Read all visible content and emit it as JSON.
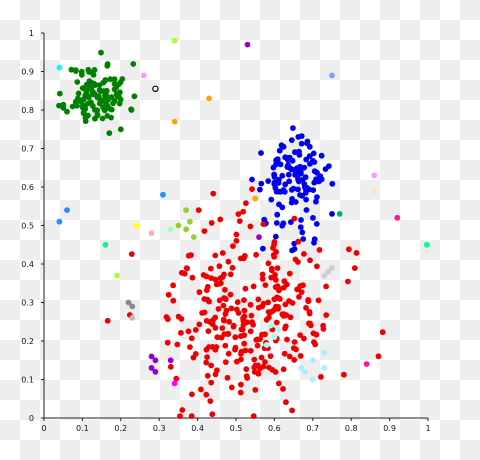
{
  "chart_data": {
    "type": "scatter",
    "xlim": [
      0,
      1
    ],
    "ylim": [
      0,
      1
    ],
    "x_ticks": [
      "0",
      "0.1",
      "0.2",
      "0.3",
      "0.4",
      "0.5",
      "0.6",
      "0.7",
      "0.8",
      "0.9",
      "1"
    ],
    "y_ticks": [
      "0",
      "0.1",
      "0.2",
      "0.3",
      "0.4",
      "0.5",
      "0.6",
      "0.7",
      "0.8",
      "0.9",
      "1"
    ],
    "grid": false,
    "clusters": [
      {
        "color": "#008000",
        "center": [
          0.14,
          0.84
        ],
        "spread": [
          0.04,
          0.04
        ],
        "count": 120,
        "seed": 11
      },
      {
        "color": "#0000ee",
        "center": [
          0.65,
          0.63
        ],
        "spread": [
          0.04,
          0.04
        ],
        "count": 110,
        "seed": 23
      },
      {
        "color": "#0000ee",
        "center": [
          0.63,
          0.49
        ],
        "spread": [
          0.05,
          0.03
        ],
        "count": 20,
        "seed": 31
      },
      {
        "color": "#ee0000",
        "center": [
          0.53,
          0.26
        ],
        "spread": [
          0.11,
          0.11
        ],
        "count": 300,
        "seed": 47
      }
    ],
    "points": [
      [
        0.34,
        0.98,
        "#adff2f"
      ],
      [
        0.53,
        0.97,
        "#9400d3"
      ],
      [
        0.04,
        0.91,
        "#00ffff"
      ],
      [
        0.26,
        0.89,
        "#ff99ff"
      ],
      [
        0.29,
        0.855,
        "#ffffff"
      ],
      [
        0.43,
        0.83,
        "#ffa500"
      ],
      [
        0.34,
        0.77,
        "#ffa500"
      ],
      [
        0.75,
        0.89,
        "#8a9cff"
      ],
      [
        0.31,
        0.58,
        "#1e90ff"
      ],
      [
        0.06,
        0.54,
        "#1e90ff"
      ],
      [
        0.04,
        0.51,
        "#1e90ff"
      ],
      [
        0.16,
        0.45,
        "#00ff88"
      ],
      [
        0.24,
        0.5,
        "#ffff00"
      ],
      [
        0.28,
        0.48,
        "#ffb0b0"
      ],
      [
        0.33,
        0.49,
        "#aaffaa"
      ],
      [
        0.37,
        0.54,
        "#9acd32"
      ],
      [
        0.38,
        0.51,
        "#9acd32"
      ],
      [
        0.37,
        0.49,
        "#9acd32"
      ],
      [
        0.35,
        0.5,
        "#9acd32"
      ],
      [
        0.39,
        0.47,
        "#9acd32"
      ],
      [
        0.55,
        0.57,
        "#ffa500"
      ],
      [
        0.56,
        0.47,
        "#9400d3"
      ],
      [
        0.77,
        0.53,
        "#00aa88"
      ],
      [
        0.86,
        0.63,
        "#ff99ff"
      ],
      [
        0.86,
        0.59,
        "#ffe4b5"
      ],
      [
        0.92,
        0.52,
        "#ff1493"
      ],
      [
        0.997,
        0.45,
        "#00ff88"
      ],
      [
        0.19,
        0.37,
        "#adff2f"
      ],
      [
        0.22,
        0.3,
        "#888888"
      ],
      [
        0.23,
        0.29,
        "#888888"
      ],
      [
        0.23,
        0.26,
        "#bbbbbb"
      ],
      [
        0.28,
        0.16,
        "#9400d3"
      ],
      [
        0.29,
        0.15,
        "#9400d3"
      ],
      [
        0.28,
        0.13,
        "#9400d3"
      ],
      [
        0.29,
        0.12,
        "#9400d3"
      ],
      [
        0.33,
        0.15,
        "#9400d3"
      ],
      [
        0.34,
        0.09,
        "#ff00ff"
      ],
      [
        0.59,
        0.24,
        "#aaffee"
      ],
      [
        0.61,
        0.23,
        "#aaffee"
      ],
      [
        0.6,
        0.21,
        "#aaffee"
      ],
      [
        0.58,
        0.19,
        "#aaffee"
      ],
      [
        0.7,
        0.15,
        "#aaeeff"
      ],
      [
        0.73,
        0.13,
        "#aaeeff"
      ],
      [
        0.67,
        0.13,
        "#aaeeff"
      ],
      [
        0.68,
        0.12,
        "#aaeeff"
      ],
      [
        0.7,
        0.1,
        "#aaeeff"
      ],
      [
        0.73,
        0.17,
        "#aaeeff"
      ],
      [
        0.74,
        0.38,
        "#cccccc"
      ],
      [
        0.75,
        0.39,
        "#cccccc"
      ],
      [
        0.73,
        0.37,
        "#cccccc"
      ],
      [
        0.84,
        0.14,
        "#ff1493"
      ],
      [
        0.17,
        0.74,
        "#008000"
      ],
      [
        0.2,
        0.75,
        "#008000"
      ],
      [
        0.75,
        0.53,
        "#0000ee"
      ],
      [
        0.57,
        0.44,
        "#0000ee"
      ]
    ]
  }
}
